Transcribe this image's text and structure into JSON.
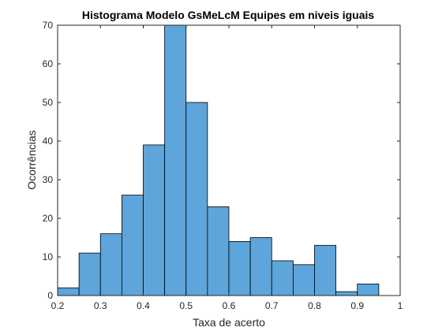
{
  "chart_data": {
    "type": "bar",
    "title": "Histograma Modelo GsMeLcM Equipes em niveis iguais",
    "xlabel": "Taxa de acerto",
    "ylabel": "Ocorrências",
    "xlim": [
      0.2,
      1.0
    ],
    "ylim": [
      0,
      70
    ],
    "xticks": [
      "0.2",
      "0.3",
      "0.4",
      "0.5",
      "0.6",
      "0.7",
      "0.8",
      "0.9",
      "1"
    ],
    "yticks": [
      "0",
      "10",
      "20",
      "30",
      "40",
      "50",
      "60",
      "70"
    ],
    "bin_edges": [
      0.2,
      0.25,
      0.3,
      0.35,
      0.4,
      0.45,
      0.5,
      0.55,
      0.6,
      0.65,
      0.7,
      0.75,
      0.8,
      0.85,
      0.9
    ],
    "values": [
      2,
      11,
      16,
      26,
      39,
      70,
      50,
      23,
      14,
      15,
      9,
      8,
      13,
      1,
      3
    ],
    "grid": false,
    "colors": {
      "bar_fill": "#5DA5DA",
      "bar_edge": "#000000",
      "axis": "#262626"
    }
  }
}
